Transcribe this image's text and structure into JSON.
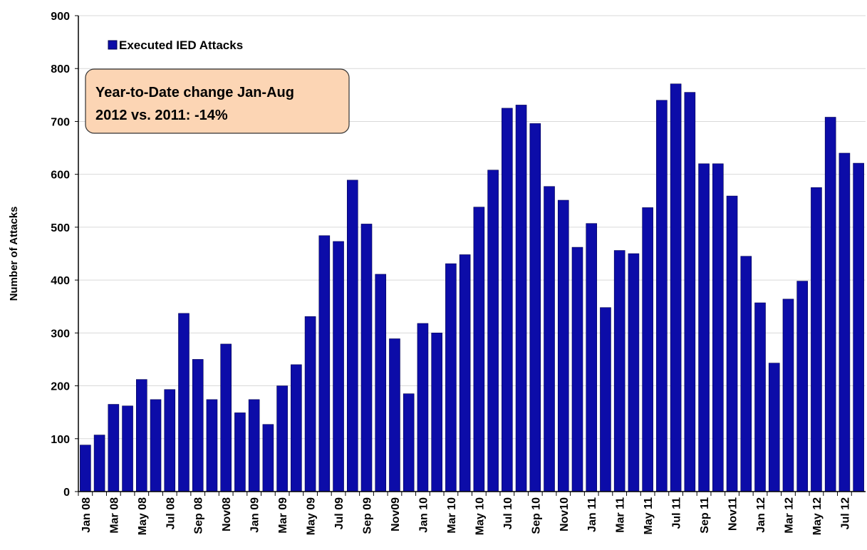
{
  "chart_data": {
    "type": "bar",
    "y_axis_label": "Number of Attacks",
    "annotation": [
      "Year-to-Date change Jan-Aug",
      "2012 vs. 2011:  -14%"
    ],
    "categories": [
      "Jan 08",
      null,
      "Mar 08",
      null,
      "May 08",
      null,
      "Jul 08",
      null,
      "Sep 08",
      null,
      "Nov08",
      null,
      "Jan 09",
      null,
      "Mar 09",
      null,
      "May 09",
      null,
      "Jul 09",
      null,
      "Sep 09",
      null,
      "Nov09",
      null,
      "Jan 10",
      null,
      "Mar 10",
      null,
      "May 10",
      null,
      "Jul 10",
      null,
      "Sep 10",
      null,
      "Nov10",
      null,
      "Jan 11",
      null,
      "Mar 11",
      null,
      "May 11",
      null,
      "Jul 11",
      null,
      "Sep 11",
      null,
      "Nov11",
      null,
      "Jan 12",
      null,
      "Mar 12",
      null,
      "May 12",
      null,
      "Jul 12",
      null
    ],
    "series": [
      {
        "name": "Executed IED Attacks",
        "color": "#0c0ca8",
        "values": [
          88,
          107,
          165,
          162,
          212,
          174,
          193,
          337,
          250,
          174,
          279,
          149,
          174,
          127,
          200,
          240,
          331,
          484,
          473,
          589,
          506,
          411,
          289,
          185,
          318,
          300,
          431,
          448,
          538,
          608,
          725,
          731,
          696,
          577,
          551,
          462,
          507,
          348,
          456,
          450,
          537,
          740,
          771,
          755,
          620,
          620,
          559,
          445,
          357,
          243,
          364,
          398,
          575,
          708,
          640,
          621
        ]
      }
    ],
    "ylim": [
      0,
      900
    ],
    "yticks": [
      0,
      100,
      200,
      300,
      400,
      500,
      600,
      700,
      800,
      900
    ],
    "grid": true,
    "legend": "upper left"
  }
}
